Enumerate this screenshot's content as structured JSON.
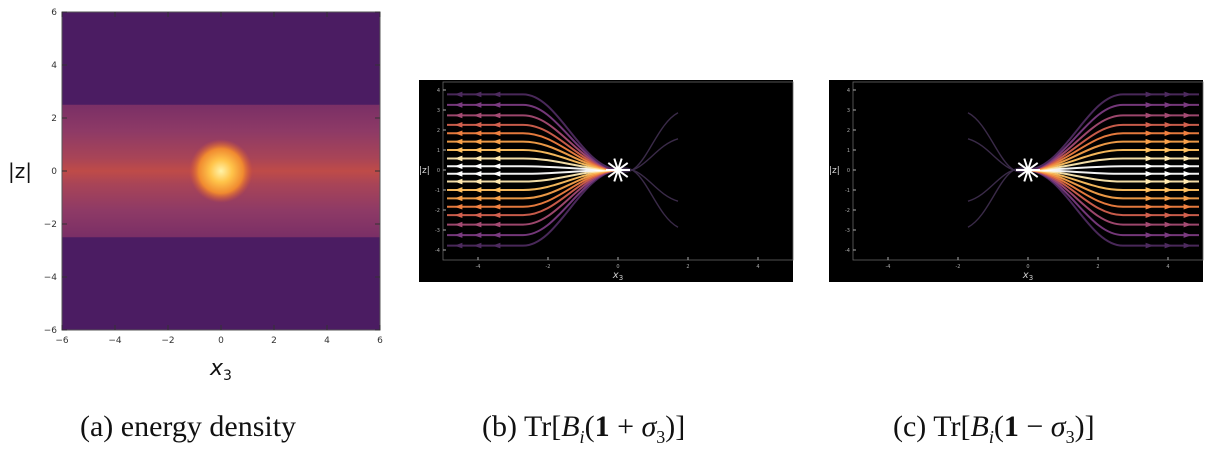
{
  "panels": [
    {
      "id": "a",
      "caption_prefix": "(a)",
      "caption_text": "energy density",
      "chart_data": {
        "type": "heatmap",
        "xlabel": "x3",
        "ylabel": "|z|",
        "xlim": [
          -6,
          6
        ],
        "ylim": [
          -6,
          6
        ],
        "xticks": [
          "-6",
          "-4",
          "-2",
          "0",
          "2",
          "4",
          "6"
        ],
        "yticks": [
          "-6",
          "-4",
          "-2",
          "0",
          "2",
          "4",
          "6"
        ],
        "band_halfwidth": 2.5,
        "peak_center": [
          0,
          0
        ],
        "colors": {
          "background": "#4b1c62",
          "band": "#8a3464",
          "band_core": "#c0493f",
          "peak": "#ffd75a"
        }
      }
    },
    {
      "id": "b",
      "caption_prefix": "(b)",
      "caption_tr": "Tr",
      "caption_sign": "+",
      "chart_data": {
        "type": "streamplot",
        "xlabel": "x3",
        "ylabel": "|z|",
        "xticks": [
          "-4",
          "-2",
          "0",
          "2",
          "4"
        ],
        "yticks": [
          "4",
          "3",
          "2",
          "1",
          "0",
          "-1",
          "-2",
          "-3",
          "-4"
        ],
        "xlim": [
          -5,
          5
        ],
        "ylim": [
          -4.5,
          4.5
        ],
        "source": [
          0,
          0
        ],
        "direction": "left",
        "background": "#000000"
      }
    },
    {
      "id": "c",
      "caption_prefix": "(c)",
      "caption_tr": "Tr",
      "caption_sign": "−",
      "chart_data": {
        "type": "streamplot",
        "xlabel": "x3",
        "ylabel": "|z|",
        "xticks": [
          "-4",
          "-2",
          "0",
          "2",
          "4"
        ],
        "yticks": [
          "4",
          "3",
          "2",
          "1",
          "0",
          "-1",
          "-2",
          "-3",
          "-4"
        ],
        "xlim": [
          -5,
          5
        ],
        "ylim": [
          -4.5,
          4.5
        ],
        "source": [
          0,
          0
        ],
        "direction": "right",
        "background": "#000000"
      }
    }
  ]
}
